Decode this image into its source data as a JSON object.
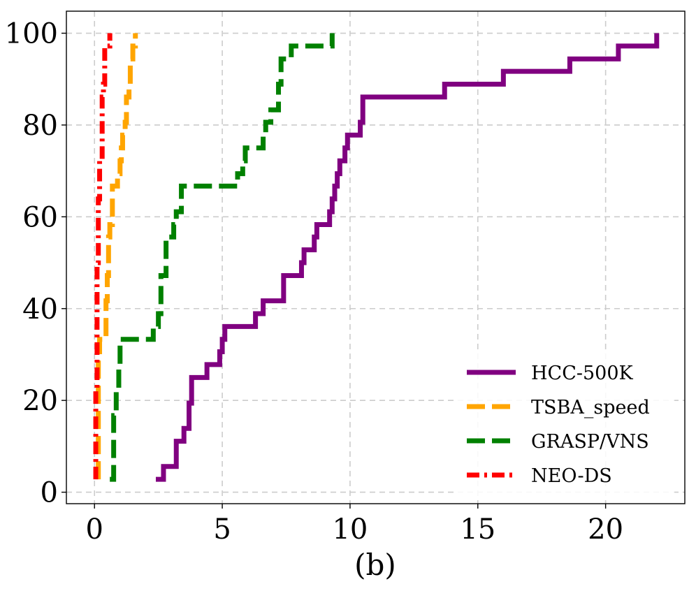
{
  "chart_data": {
    "type": "line",
    "caption": "(b)",
    "xlabel": "",
    "ylabel": "",
    "xlim": [
      -1.1,
      23.1
    ],
    "ylim": [
      -2.5,
      104.8
    ],
    "xticks": [
      0,
      5,
      10,
      15,
      20
    ],
    "yticks": [
      0,
      20,
      40,
      60,
      80,
      100
    ],
    "grid": true,
    "legend_position": "bottom-right",
    "series": [
      {
        "name": "HCC-500K",
        "color": "#800080",
        "style": "solid",
        "points": [
          [
            2.4,
            2.8
          ],
          [
            2.7,
            2.8
          ],
          [
            2.7,
            5.6
          ],
          [
            3.2,
            5.6
          ],
          [
            3.2,
            11.1
          ],
          [
            3.5,
            11.1
          ],
          [
            3.5,
            13.9
          ],
          [
            3.7,
            13.9
          ],
          [
            3.7,
            19.4
          ],
          [
            3.8,
            19.4
          ],
          [
            3.8,
            25.0
          ],
          [
            4.4,
            25.0
          ],
          [
            4.4,
            27.8
          ],
          [
            4.9,
            27.8
          ],
          [
            4.9,
            30.6
          ],
          [
            5.0,
            30.6
          ],
          [
            5.0,
            33.3
          ],
          [
            5.1,
            33.3
          ],
          [
            5.1,
            36.1
          ],
          [
            6.3,
            36.1
          ],
          [
            6.3,
            38.9
          ],
          [
            6.6,
            38.9
          ],
          [
            6.6,
            41.7
          ],
          [
            7.4,
            41.7
          ],
          [
            7.4,
            47.2
          ],
          [
            8.1,
            47.2
          ],
          [
            8.1,
            50.0
          ],
          [
            8.2,
            50.0
          ],
          [
            8.2,
            52.8
          ],
          [
            8.6,
            52.8
          ],
          [
            8.6,
            55.6
          ],
          [
            8.7,
            55.6
          ],
          [
            8.7,
            58.3
          ],
          [
            9.2,
            58.3
          ],
          [
            9.2,
            61.1
          ],
          [
            9.3,
            61.1
          ],
          [
            9.3,
            63.9
          ],
          [
            9.4,
            63.9
          ],
          [
            9.4,
            66.7
          ],
          [
            9.5,
            66.7
          ],
          [
            9.5,
            69.4
          ],
          [
            9.6,
            69.4
          ],
          [
            9.6,
            72.2
          ],
          [
            9.8,
            72.2
          ],
          [
            9.8,
            75.0
          ],
          [
            9.9,
            75.0
          ],
          [
            9.9,
            77.8
          ],
          [
            10.4,
            77.8
          ],
          [
            10.4,
            80.6
          ],
          [
            10.5,
            80.6
          ],
          [
            10.5,
            86.1
          ],
          [
            13.7,
            86.1
          ],
          [
            13.7,
            88.9
          ],
          [
            16.0,
            88.9
          ],
          [
            16.0,
            91.7
          ],
          [
            18.6,
            91.7
          ],
          [
            18.6,
            94.4
          ],
          [
            20.5,
            94.4
          ],
          [
            20.5,
            97.2
          ],
          [
            22.0,
            97.2
          ],
          [
            22.0,
            100.0
          ]
        ]
      },
      {
        "name": "TSBA_speed",
        "color": "#ffa500",
        "style": "dashed",
        "points": [
          [
            0.15,
            2.8
          ],
          [
            0.15,
            30.6
          ],
          [
            0.2,
            30.6
          ],
          [
            0.2,
            33.3
          ],
          [
            0.45,
            33.3
          ],
          [
            0.45,
            41.7
          ],
          [
            0.5,
            41.7
          ],
          [
            0.5,
            47.2
          ],
          [
            0.55,
            47.2
          ],
          [
            0.55,
            55.6
          ],
          [
            0.6,
            55.6
          ],
          [
            0.6,
            58.3
          ],
          [
            0.7,
            58.3
          ],
          [
            0.7,
            66.7
          ],
          [
            0.9,
            66.7
          ],
          [
            0.9,
            69.4
          ],
          [
            1.0,
            69.4
          ],
          [
            1.0,
            72.2
          ],
          [
            1.05,
            72.2
          ],
          [
            1.05,
            75.0
          ],
          [
            1.1,
            75.0
          ],
          [
            1.1,
            77.8
          ],
          [
            1.2,
            77.8
          ],
          [
            1.2,
            80.6
          ],
          [
            1.25,
            80.6
          ],
          [
            1.25,
            86.1
          ],
          [
            1.35,
            86.1
          ],
          [
            1.35,
            88.9
          ],
          [
            1.4,
            88.9
          ],
          [
            1.4,
            94.4
          ],
          [
            1.5,
            94.4
          ],
          [
            1.5,
            97.2
          ],
          [
            1.6,
            97.2
          ],
          [
            1.6,
            100.0
          ]
        ]
      },
      {
        "name": "GRASP/VNS",
        "color": "#008000",
        "style": "dashed",
        "points": [
          [
            0.6,
            2.8
          ],
          [
            0.75,
            2.8
          ],
          [
            0.75,
            16.7
          ],
          [
            0.85,
            16.7
          ],
          [
            0.85,
            22.2
          ],
          [
            0.95,
            22.2
          ],
          [
            0.95,
            27.8
          ],
          [
            1.0,
            27.8
          ],
          [
            1.0,
            33.3
          ],
          [
            2.3,
            33.3
          ],
          [
            2.3,
            36.1
          ],
          [
            2.5,
            36.1
          ],
          [
            2.5,
            38.9
          ],
          [
            2.6,
            38.9
          ],
          [
            2.6,
            47.2
          ],
          [
            2.8,
            47.2
          ],
          [
            2.8,
            55.6
          ],
          [
            3.1,
            55.6
          ],
          [
            3.1,
            58.3
          ],
          [
            3.2,
            58.3
          ],
          [
            3.2,
            61.1
          ],
          [
            3.4,
            61.1
          ],
          [
            3.4,
            66.7
          ],
          [
            5.6,
            66.7
          ],
          [
            5.6,
            69.4
          ],
          [
            5.8,
            69.4
          ],
          [
            5.8,
            72.2
          ],
          [
            5.9,
            72.2
          ],
          [
            5.9,
            75.0
          ],
          [
            6.6,
            75.0
          ],
          [
            6.6,
            77.8
          ],
          [
            6.7,
            77.8
          ],
          [
            6.7,
            80.6
          ],
          [
            6.9,
            80.6
          ],
          [
            6.9,
            83.3
          ],
          [
            7.2,
            83.3
          ],
          [
            7.2,
            88.9
          ],
          [
            7.3,
            88.9
          ],
          [
            7.3,
            94.4
          ],
          [
            7.7,
            94.4
          ],
          [
            7.7,
            97.2
          ],
          [
            9.3,
            97.2
          ],
          [
            9.3,
            100.0
          ]
        ]
      },
      {
        "name": "NEO-DS",
        "color": "#ff0000",
        "style": "dashdot",
        "points": [
          [
            0.05,
            2.8
          ],
          [
            0.05,
            22.2
          ],
          [
            0.1,
            22.2
          ],
          [
            0.1,
            50.0
          ],
          [
            0.15,
            50.0
          ],
          [
            0.15,
            63.9
          ],
          [
            0.2,
            63.9
          ],
          [
            0.2,
            72.2
          ],
          [
            0.3,
            72.2
          ],
          [
            0.3,
            86.1
          ],
          [
            0.35,
            86.1
          ],
          [
            0.35,
            88.9
          ],
          [
            0.4,
            88.9
          ],
          [
            0.4,
            97.2
          ],
          [
            0.6,
            97.2
          ],
          [
            0.6,
            100.0
          ]
        ]
      }
    ]
  }
}
